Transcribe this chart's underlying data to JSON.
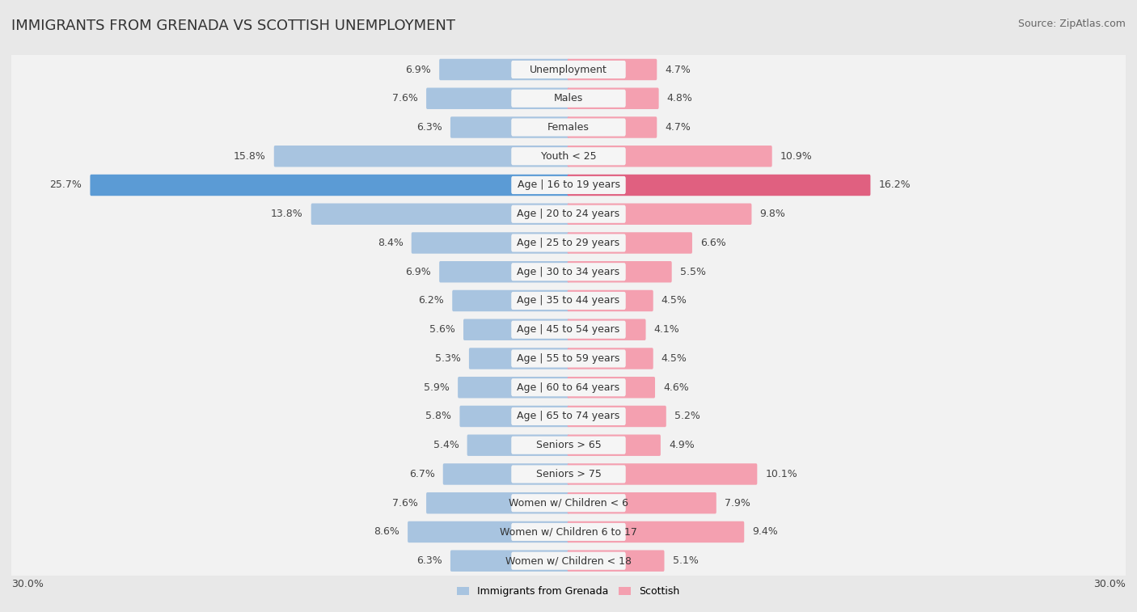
{
  "title": "IMMIGRANTS FROM GRENADA VS SCOTTISH UNEMPLOYMENT",
  "source": "Source: ZipAtlas.com",
  "categories": [
    "Unemployment",
    "Males",
    "Females",
    "Youth < 25",
    "Age | 16 to 19 years",
    "Age | 20 to 24 years",
    "Age | 25 to 29 years",
    "Age | 30 to 34 years",
    "Age | 35 to 44 years",
    "Age | 45 to 54 years",
    "Age | 55 to 59 years",
    "Age | 60 to 64 years",
    "Age | 65 to 74 years",
    "Seniors > 65",
    "Seniors > 75",
    "Women w/ Children < 6",
    "Women w/ Children 6 to 17",
    "Women w/ Children < 18"
  ],
  "left_values": [
    6.9,
    7.6,
    6.3,
    15.8,
    25.7,
    13.8,
    8.4,
    6.9,
    6.2,
    5.6,
    5.3,
    5.9,
    5.8,
    5.4,
    6.7,
    7.6,
    8.6,
    6.3
  ],
  "right_values": [
    4.7,
    4.8,
    4.7,
    10.9,
    16.2,
    9.8,
    6.6,
    5.5,
    4.5,
    4.1,
    4.5,
    4.6,
    5.2,
    4.9,
    10.1,
    7.9,
    9.4,
    5.1
  ],
  "left_color": "#a8c4e0",
  "right_color": "#f4a0b0",
  "highlight_left_color": "#5b9bd5",
  "highlight_right_color": "#e06080",
  "highlight_row": 4,
  "axis_max": 30.0,
  "background_color": "#e8e8e8",
  "row_light_color": "#f2f2f2",
  "row_dark_color": "#e8e8e8",
  "legend_left": "Immigrants from Grenada",
  "legend_right": "Scottish",
  "title_fontsize": 13,
  "source_fontsize": 9,
  "label_fontsize": 9,
  "value_fontsize": 9
}
